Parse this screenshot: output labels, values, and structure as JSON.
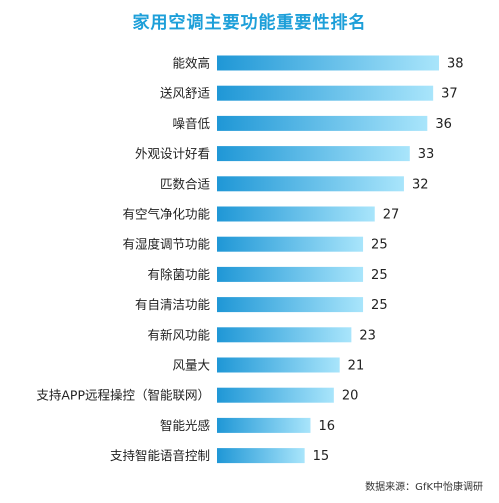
{
  "chart_data": {
    "type": "bar",
    "orientation": "horizontal",
    "title": "家用空调主要功能重要性排名",
    "categories": [
      "能效高",
      "送风舒适",
      "噪音低",
      "外观设计好看",
      "匹数合适",
      "有空气净化功能",
      "有湿度调节功能",
      "有除菌功能",
      "有自清洁功能",
      "有新风功能",
      "风量大",
      "支持APP远程操控（智能联网）",
      "智能光感",
      "支持智能语音控制"
    ],
    "values": [
      38,
      37,
      36,
      33,
      32,
      27,
      25,
      25,
      25,
      23,
      21,
      20,
      16,
      15
    ],
    "xlim": [
      0,
      38
    ],
    "grid": false,
    "legend": "none",
    "source": "数据来源：GfK中怡康调研",
    "colors": {
      "title": "#1d9fd9",
      "bar_start": "#1f97d6",
      "bar_end": "#a9e5fb",
      "text": "#222222"
    }
  }
}
